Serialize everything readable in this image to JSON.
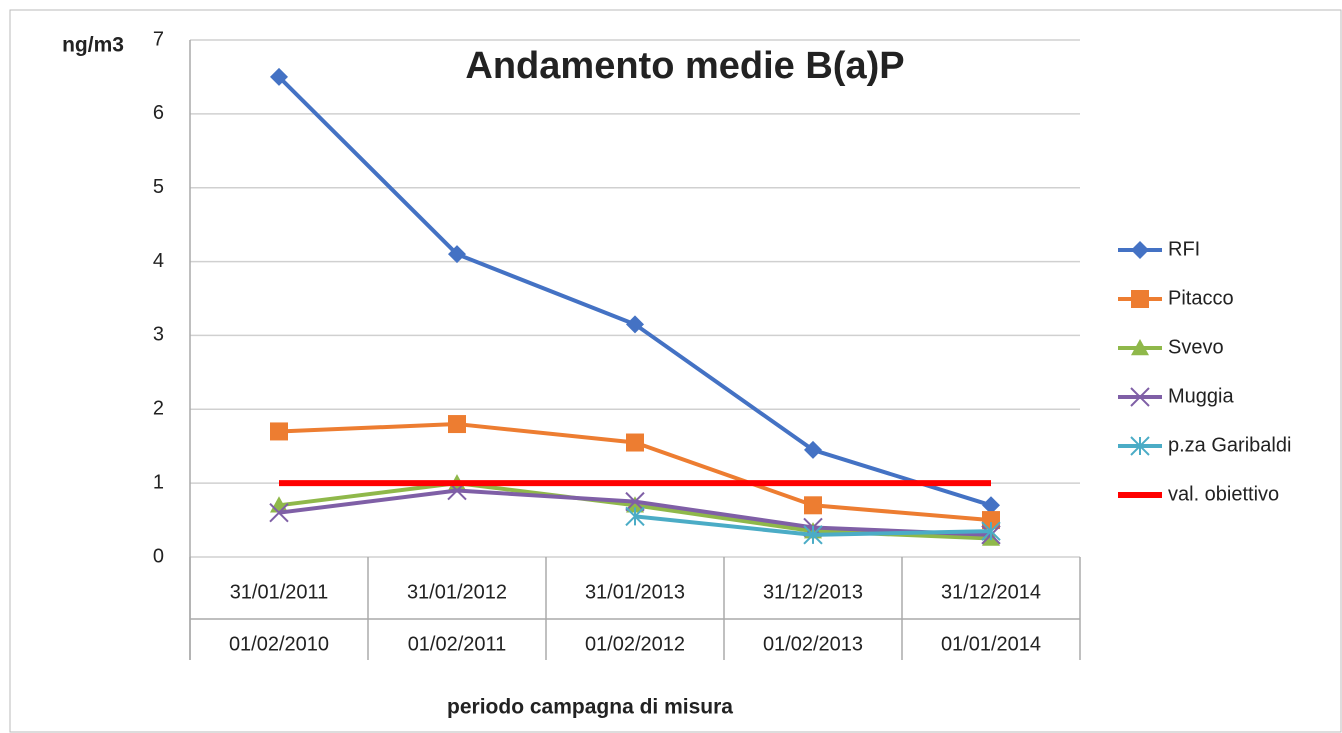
{
  "chart_data": {
    "type": "line",
    "title": "Andamento medie B(a)P",
    "ylabel": "ng/m3",
    "xlabel": "periodo campagna di misura",
    "categories": [
      [
        "31/01/2011",
        "01/02/2010"
      ],
      [
        "31/01/2012",
        "01/02/2011"
      ],
      [
        "31/01/2013",
        "01/02/2012"
      ],
      [
        "31/12/2013",
        "01/02/2013"
      ],
      [
        "31/12/2014",
        "01/01/2014"
      ]
    ],
    "ylim": [
      0,
      7
    ],
    "yticks": [
      0,
      1,
      2,
      3,
      4,
      5,
      6,
      7
    ],
    "grid": true,
    "legend": "right",
    "series": [
      {
        "name": "RFI",
        "color": "#4472c4",
        "marker": "diamond",
        "values": [
          6.5,
          4.1,
          3.15,
          1.45,
          0.7
        ]
      },
      {
        "name": "Pitacco",
        "color": "#ed7d31",
        "marker": "square",
        "values": [
          1.7,
          1.8,
          1.55,
          0.7,
          0.5
        ]
      },
      {
        "name": "Svevo",
        "color": "#8fb84a",
        "marker": "triangle",
        "values": [
          0.7,
          1.0,
          0.7,
          0.35,
          0.25
        ]
      },
      {
        "name": "Muggia",
        "color": "#7f5fa6",
        "marker": "x",
        "values": [
          0.6,
          0.9,
          0.75,
          0.4,
          0.3
        ]
      },
      {
        "name": "p.za Garibaldi",
        "color": "#4bacc6",
        "marker": "star",
        "values": [
          null,
          null,
          0.55,
          0.3,
          0.35
        ]
      },
      {
        "name": "val. obiettivo",
        "color": "#ff0000",
        "marker": "none",
        "values": [
          1,
          1,
          1,
          1,
          1
        ]
      }
    ]
  }
}
